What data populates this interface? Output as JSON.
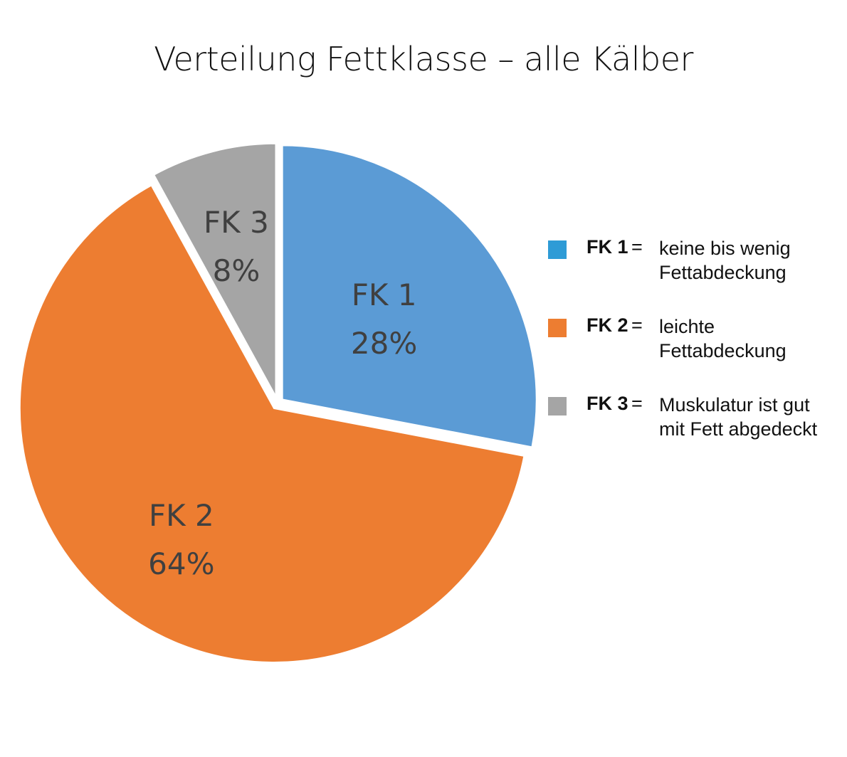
{
  "chart_data": {
    "type": "pie",
    "title": "Verteilung Fettklasse – alle Kälber",
    "slices": [
      {
        "name": "FK 1",
        "label": "FK 1",
        "value": 28,
        "value_label": "28%",
        "color": "#5B9BD5"
      },
      {
        "name": "FK 2",
        "label": "FK 2",
        "value": 64,
        "value_label": "64%",
        "color": "#ED7D31"
      },
      {
        "name": "FK 3",
        "label": "FK 3",
        "value": 8,
        "value_label": "8%",
        "color": "#A5A5A5"
      }
    ],
    "start_angle_deg": 0,
    "direction": "clockwise",
    "exploded": true,
    "legend_position": "right",
    "legend": [
      {
        "key": "FK 1",
        "eq": "=",
        "desc_line1": "keine bis wenig",
        "desc_line2": "Fettabdeckung",
        "color": "#2E9BD6"
      },
      {
        "key": "FK 2",
        "eq": "=",
        "desc_line1": "leichte",
        "desc_line2": "Fettabdeckung",
        "color": "#ED7D31"
      },
      {
        "key": "FK 3",
        "eq": "=",
        "desc_line1": "Muskulatur ist gut",
        "desc_line2": "mit Fett abgedeckt",
        "color": "#A5A5A5"
      }
    ]
  }
}
